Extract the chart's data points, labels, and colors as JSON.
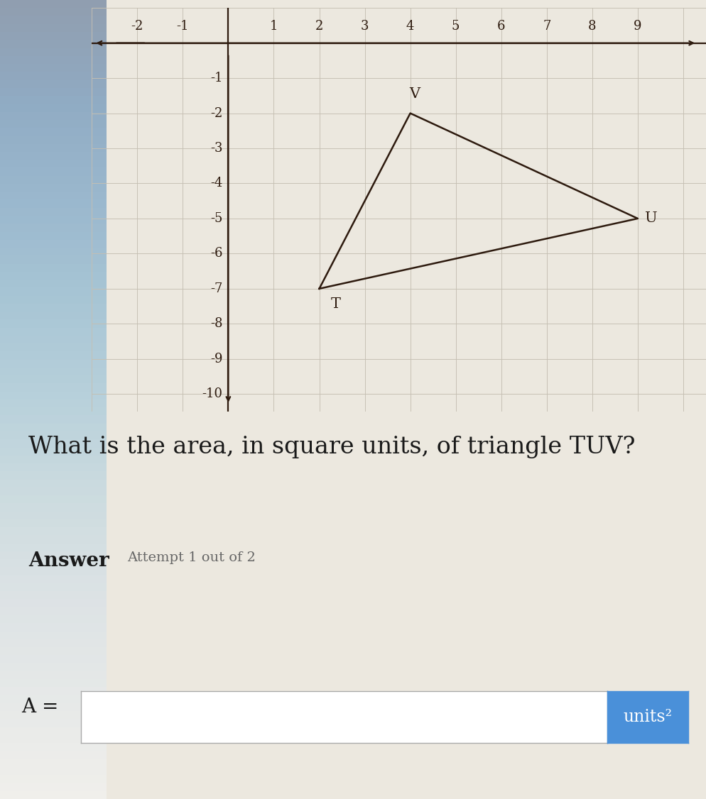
{
  "T": [
    2,
    -7
  ],
  "U": [
    9,
    -5
  ],
  "V": [
    4,
    -2
  ],
  "triangle_color": "#2d1a0e",
  "triangle_linewidth": 1.8,
  "bg_color": "#ece8df",
  "grid_color": "#c5bfb2",
  "axis_color": "#2d1a0e",
  "xmin": -3,
  "xmax": 10.5,
  "ymin": -10.5,
  "ymax": 1.0,
  "x_ticks": [
    -2,
    -1,
    1,
    2,
    3,
    4,
    5,
    6,
    7,
    8,
    9
  ],
  "y_ticks": [
    -1,
    -2,
    -3,
    -4,
    -5,
    -6,
    -7,
    -8,
    -9,
    -10
  ],
  "question_text": "What is the area, in square units, of triangle TUV?",
  "answer_label": "Answer",
  "attempt_text": "Attempt 1 out of 2",
  "a_label": "A =",
  "units_label": "units²",
  "tick_fontsize": 13,
  "question_fontsize": 24,
  "answer_bold_fontsize": 20,
  "attempt_fontsize": 14,
  "vertex_fontsize": 15,
  "input_box_color": "#ffffff",
  "units_box_color": "#4a90d9",
  "text_color": "#1a1a1a",
  "answer_text_color": "#333333",
  "left_bg": "#d0dce8"
}
